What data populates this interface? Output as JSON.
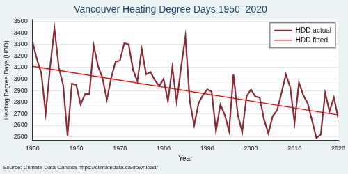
{
  "chart_data": {
    "type": "line",
    "title": "Vancouver Heating Degree Days 1950–2020",
    "x_label": "Year",
    "y_label": "Heating Degree Days (HDD)",
    "source": "Source: Climate Data Canada https://climatedata.ca/download/",
    "series": [
      {
        "name": "HDD actual",
        "color": "#8b2a37",
        "line_style": "solid",
        "x": [
          1950,
          1951,
          1952,
          1953,
          1954,
          1955,
          1956,
          1957,
          1958,
          1959,
          1960,
          1961,
          1962,
          1963,
          1964,
          1965,
          1966,
          1967,
          1968,
          1969,
          1970,
          1971,
          1972,
          1973,
          1974,
          1975,
          1976,
          1977,
          1978,
          1979,
          1980,
          1981,
          1982,
          1983,
          1984,
          1985,
          1986,
          1987,
          1988,
          1989,
          1990,
          1991,
          1992,
          1993,
          1994,
          1995,
          1996,
          1997,
          1998,
          1999,
          2000,
          2001,
          2002,
          2003,
          2004,
          2005,
          2006,
          2007,
          2008,
          2009,
          2010,
          2011,
          2012,
          2013,
          2014,
          2015,
          2016,
          2017,
          2018,
          2019,
          2020
        ],
        "values": [
          3320,
          3170,
          3050,
          2700,
          3100,
          3440,
          3100,
          2950,
          2510,
          2960,
          2950,
          2780,
          2870,
          2870,
          3290,
          3110,
          3010,
          2820,
          3010,
          3150,
          3160,
          3310,
          3300,
          3080,
          2980,
          3260,
          3040,
          3060,
          2990,
          2940,
          3000,
          2810,
          3100,
          2800,
          3100,
          3370,
          2810,
          2600,
          2790,
          2860,
          2910,
          2890,
          2550,
          2780,
          2690,
          2550,
          3040,
          2690,
          2540,
          2850,
          2910,
          2850,
          2840,
          2650,
          2530,
          2680,
          2730,
          2880,
          3040,
          2930,
          2620,
          2970,
          2860,
          2790,
          2640,
          2490,
          2520,
          2880,
          2720,
          2840,
          2660
        ]
      },
      {
        "name": "HDD fitted",
        "color": "#ff0000",
        "line_style": "solid",
        "x": [
          1950,
          2020
        ],
        "values": [
          3110,
          2690
        ]
      }
    ],
    "xlim": [
      1950,
      2020
    ],
    "xticks": [
      1950,
      1960,
      1970,
      1980,
      1990,
      2000,
      2010,
      2020
    ],
    "ylim": [
      2470,
      3510
    ],
    "yticks": [
      2500,
      2600,
      2700,
      2800,
      2900,
      3000,
      3100,
      3200,
      3300,
      3400,
      3500
    ],
    "grid": true,
    "legend": "upper right"
  }
}
